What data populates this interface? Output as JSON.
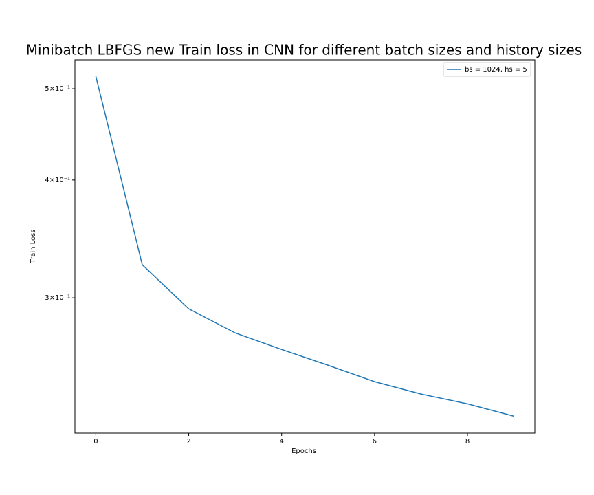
{
  "chart_data": {
    "type": "line",
    "title": "Minibatch LBFGS new Train loss in CNN for different batch sizes and history sizes",
    "x_label": "Epochs",
    "y_label": "Train Loss",
    "x": [
      0,
      1,
      2,
      3,
      4,
      5,
      6,
      7,
      8,
      9
    ],
    "series": [
      {
        "name": "bs = 1024, hs = 5",
        "color": "#1f77b4",
        "values": [
          0.5155,
          0.3252,
          0.292,
          0.2753,
          0.2644,
          0.2544,
          0.2444,
          0.2371,
          0.2315,
          0.2246
        ]
      }
    ],
    "xlim": [
      -0.45,
      9.45
    ],
    "xticks": [
      0,
      2,
      4,
      6,
      8
    ],
    "ylim": [
      0.2155,
      0.5366
    ],
    "log_y": true,
    "yticks": [
      {
        "value": 0.3,
        "label": "3×10⁻¹"
      },
      {
        "value": 0.4,
        "label": "4×10⁻¹"
      },
      {
        "value": 0.5,
        "label": "5×10⁻¹"
      }
    ],
    "legend": "upper right"
  }
}
